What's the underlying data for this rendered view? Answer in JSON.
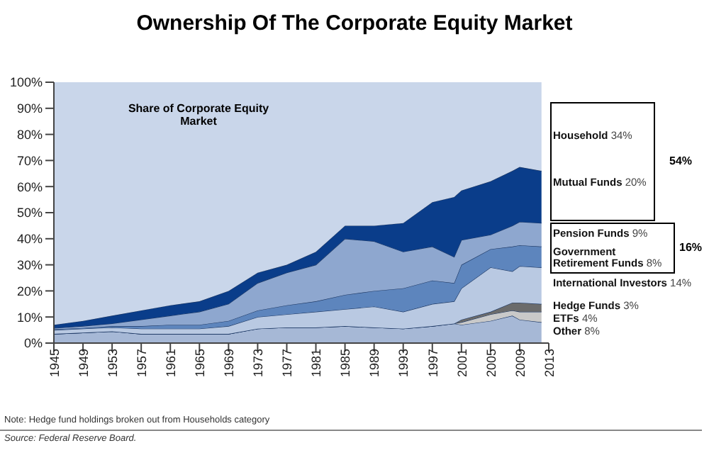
{
  "chart_data": {
    "type": "area",
    "title": "Ownership Of The Corporate Equity Market",
    "stacked": true,
    "legend": "right",
    "x": [
      1945,
      1949,
      1953,
      1957,
      1961,
      1965,
      1969,
      1973,
      1977,
      1981,
      1985,
      1989,
      1993,
      1997,
      2000,
      2001,
      2005,
      2008,
      2009,
      2012
    ],
    "xlim": [
      1945,
      2013
    ],
    "xticks": [
      1945,
      1949,
      1953,
      1957,
      1961,
      1965,
      1969,
      1973,
      1977,
      1981,
      1985,
      1989,
      1993,
      1997,
      2001,
      2005,
      2009,
      2013
    ],
    "ylim": [
      0,
      100
    ],
    "yticks": [
      {
        "value": 0,
        "label": "0%"
      },
      {
        "value": 10,
        "label": "10%"
      },
      {
        "value": 20,
        "label": "20%"
      },
      {
        "value": 30,
        "label": "30%"
      },
      {
        "value": 40,
        "label": "40%"
      },
      {
        "value": 50,
        "label": "50%"
      },
      {
        "value": 60,
        "label": "60%"
      },
      {
        "value": 70,
        "label": "70%"
      },
      {
        "value": 80,
        "label": "80%"
      },
      {
        "value": 90,
        "label": "90%"
      },
      {
        "value": 100,
        "label": "100%"
      }
    ],
    "series": [
      {
        "name": "Other",
        "color": "#a6b8d6",
        "values": [
          3.5,
          4,
          4.5,
          3.5,
          3.5,
          3.5,
          3.5,
          5.5,
          6,
          6,
          6.5,
          6,
          5.5,
          6.5,
          7.5,
          7,
          8.5,
          10.5,
          9,
          8
        ]
      },
      {
        "name": "ETFs",
        "color": "#c9c9c9",
        "values": [
          0,
          0,
          0,
          0,
          0,
          0,
          0,
          0,
          0,
          0,
          0,
          0,
          0,
          0,
          0,
          1,
          2.5,
          2,
          3,
          4
        ]
      },
      {
        "name": "Hedge Funds",
        "color": "#6b6b6b",
        "values": [
          0,
          0,
          0,
          0,
          0,
          0,
          0,
          0,
          0,
          0,
          0,
          0,
          0,
          0,
          0,
          1,
          1,
          3,
          3.5,
          3
        ]
      },
      {
        "name": "International Investors",
        "color": "#b9c9e2",
        "values": [
          1.5,
          1.5,
          1.5,
          2,
          2,
          2,
          3,
          4.5,
          5,
          6,
          6.5,
          8,
          6.5,
          8.5,
          8.5,
          12,
          17,
          12,
          14,
          14
        ]
      },
      {
        "name": "Government Retirement Funds",
        "color": "#5d85bd",
        "values": [
          0.3,
          0.3,
          0.5,
          1,
          1.5,
          1.5,
          2,
          2.5,
          3.5,
          4,
          5.5,
          6,
          9,
          9,
          7,
          9,
          7,
          9.5,
          8,
          8
        ]
      },
      {
        "name": "Pension Funds",
        "color": "#8ea7cf",
        "values": [
          0.4,
          0.7,
          1,
          2.5,
          3.5,
          5,
          6.5,
          10.5,
          12.5,
          14,
          21.5,
          19,
          14,
          13,
          10,
          9.5,
          5.5,
          8,
          9,
          9
        ]
      },
      {
        "name": "Mutual Funds",
        "color": "#0a3d8a",
        "values": [
          1.3,
          2,
          3,
          3.5,
          4,
          4,
          5,
          4,
          3,
          5,
          5,
          6,
          11,
          17,
          23,
          19,
          20.5,
          21,
          21,
          20
        ]
      },
      {
        "name": "Household",
        "color": "#c9d6ea",
        "values": [
          93,
          91.5,
          89.5,
          87.5,
          85.5,
          84,
          80,
          73,
          70,
          65,
          55,
          55,
          54,
          46,
          44,
          41.5,
          38,
          34,
          32.5,
          34
        ]
      }
    ],
    "annotations": [
      "Share of Corporate Equity Market",
      "Note: Hedge fund holdings broken out from Households category",
      "Source: Federal Reserve Board.",
      "34%",
      "20%",
      "9%",
      "8%",
      "14%",
      "3%",
      "4%",
      "8%",
      "54%",
      "16%"
    ]
  }
}
